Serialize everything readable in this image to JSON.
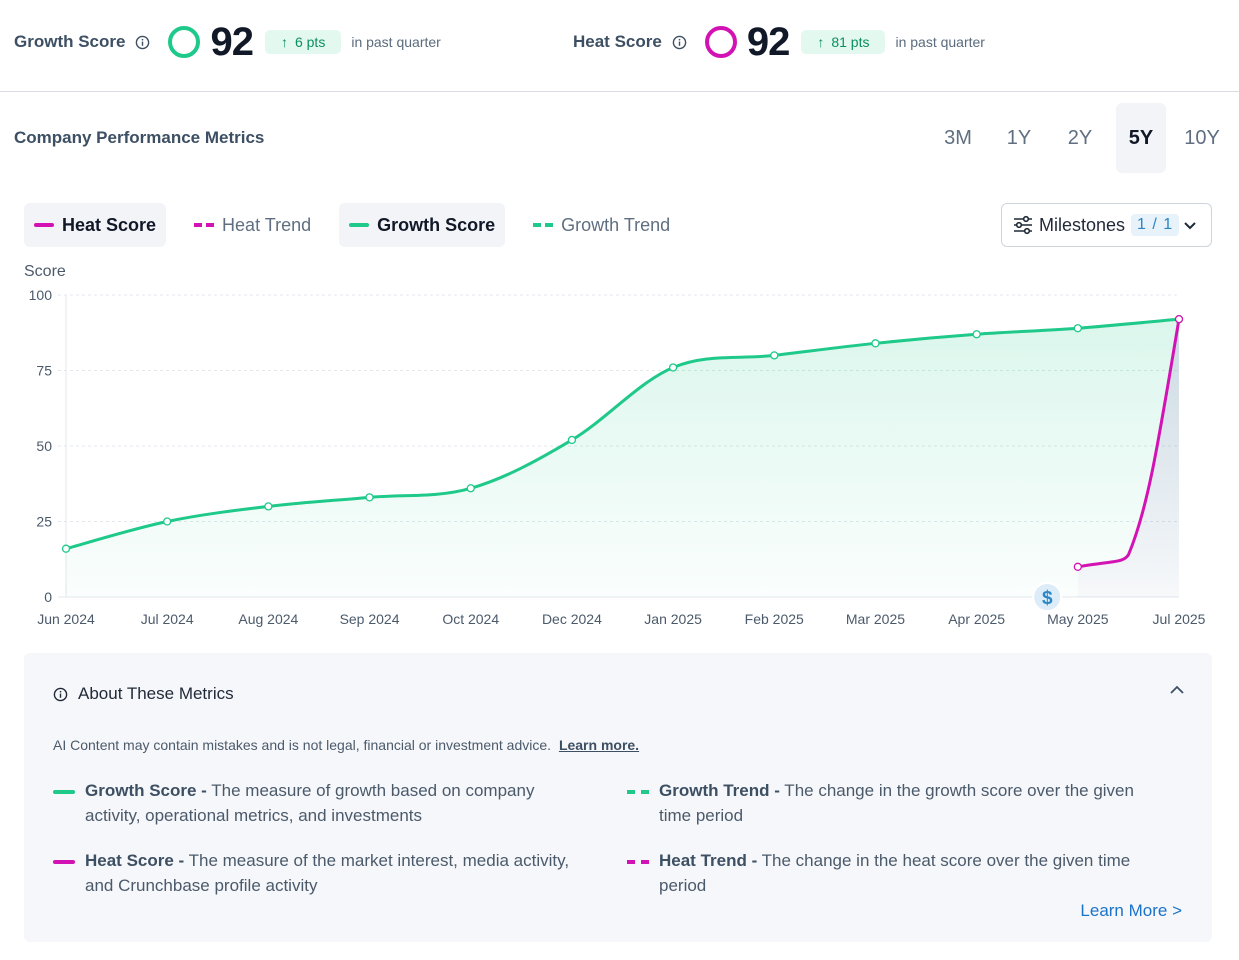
{
  "header": {
    "growth": {
      "label": "Growth Score",
      "value": "92",
      "delta": "6 pts",
      "period": "in past quarter"
    },
    "heat": {
      "label": "Heat Score",
      "value": "92",
      "delta": "81 pts",
      "period": "in past quarter"
    }
  },
  "section_title": "Company Performance Metrics",
  "ranges": [
    {
      "label": "3M",
      "active": false
    },
    {
      "label": "1Y",
      "active": false
    },
    {
      "label": "2Y",
      "active": false
    },
    {
      "label": "5Y",
      "active": true
    },
    {
      "label": "10Y",
      "active": false
    }
  ],
  "legend": [
    {
      "label": "Heat Score",
      "active": true,
      "style": "solid",
      "color": "#d312b4"
    },
    {
      "label": "Heat Trend",
      "active": false,
      "style": "dashed",
      "color": "#d312b4"
    },
    {
      "label": "Growth Score",
      "active": true,
      "style": "solid",
      "color": "#1ec98a"
    },
    {
      "label": "Growth Trend",
      "active": false,
      "style": "dashed",
      "color": "#1ec98a"
    }
  ],
  "milestones": {
    "label": "Milestones",
    "count": "1 / 1"
  },
  "colors": {
    "growth": "#1ec98a",
    "heat": "#d312b4",
    "link": "#1a73c9"
  },
  "chart_data": {
    "type": "line",
    "ylabel": "Score",
    "ylim": [
      0,
      100
    ],
    "yticks": [
      0,
      25,
      50,
      75,
      100
    ],
    "xticks": [
      "Jun 2024",
      "Jul 2024",
      "Aug 2024",
      "Sep 2024",
      "Oct 2024",
      "Dec 2024",
      "Jan 2025",
      "Feb 2025",
      "Mar 2025",
      "Apr 2025",
      "May 2025",
      "Jul 2025"
    ],
    "grid": true,
    "series": [
      {
        "name": "Growth Score",
        "color": "#1ec98a",
        "area": true,
        "points": [
          {
            "x": "Jun 2024",
            "y": 16
          },
          {
            "x": "Jul 2024",
            "y": 25
          },
          {
            "x": "Aug 2024",
            "y": 30
          },
          {
            "x": "Sep 2024",
            "y": 33
          },
          {
            "x": "Oct 2024",
            "y": 36
          },
          {
            "x": "Dec 2024",
            "y": 52
          },
          {
            "x": "Jan 2025",
            "y": 76
          },
          {
            "x": "Feb 2025",
            "y": 80
          },
          {
            "x": "Mar 2025",
            "y": 84
          },
          {
            "x": "Apr 2025",
            "y": 87
          },
          {
            "x": "May 2025",
            "y": 89
          },
          {
            "x": "Jul 2025",
            "y": 92
          }
        ]
      },
      {
        "name": "Heat Score",
        "color": "#d312b4",
        "area": true,
        "points": [
          {
            "x": "May 2025",
            "y": 10
          },
          {
            "x": "Jul 2025",
            "y": 92
          }
        ]
      }
    ],
    "milestone_markers": [
      {
        "x_between": [
          "Apr 2025",
          "May 2025"
        ],
        "icon": "dollar-icon"
      }
    ]
  },
  "about": {
    "title": "About These Metrics",
    "disclaimer": "AI Content may contain mistakes and is not legal, financial or investment advice.",
    "disclaimer_link": "Learn more.",
    "definitions": [
      {
        "term": "Growth Score -",
        "text": " The measure of growth based on company activity, operational metrics, and investments",
        "style": "solid",
        "color": "#1ec98a"
      },
      {
        "term": "Growth Trend -",
        "text": " The change in the growth score over the given time period",
        "style": "dashed",
        "color": "#1ec98a"
      },
      {
        "term": "Heat Score -",
        "text": " The measure of the market interest, media activity, and Crunchbase profile activity",
        "style": "solid",
        "color": "#d312b4"
      },
      {
        "term": "Heat Trend -",
        "text": " The change in the heat score over the given time period",
        "style": "dashed",
        "color": "#d312b4"
      }
    ],
    "learn_more": "Learn More >"
  }
}
